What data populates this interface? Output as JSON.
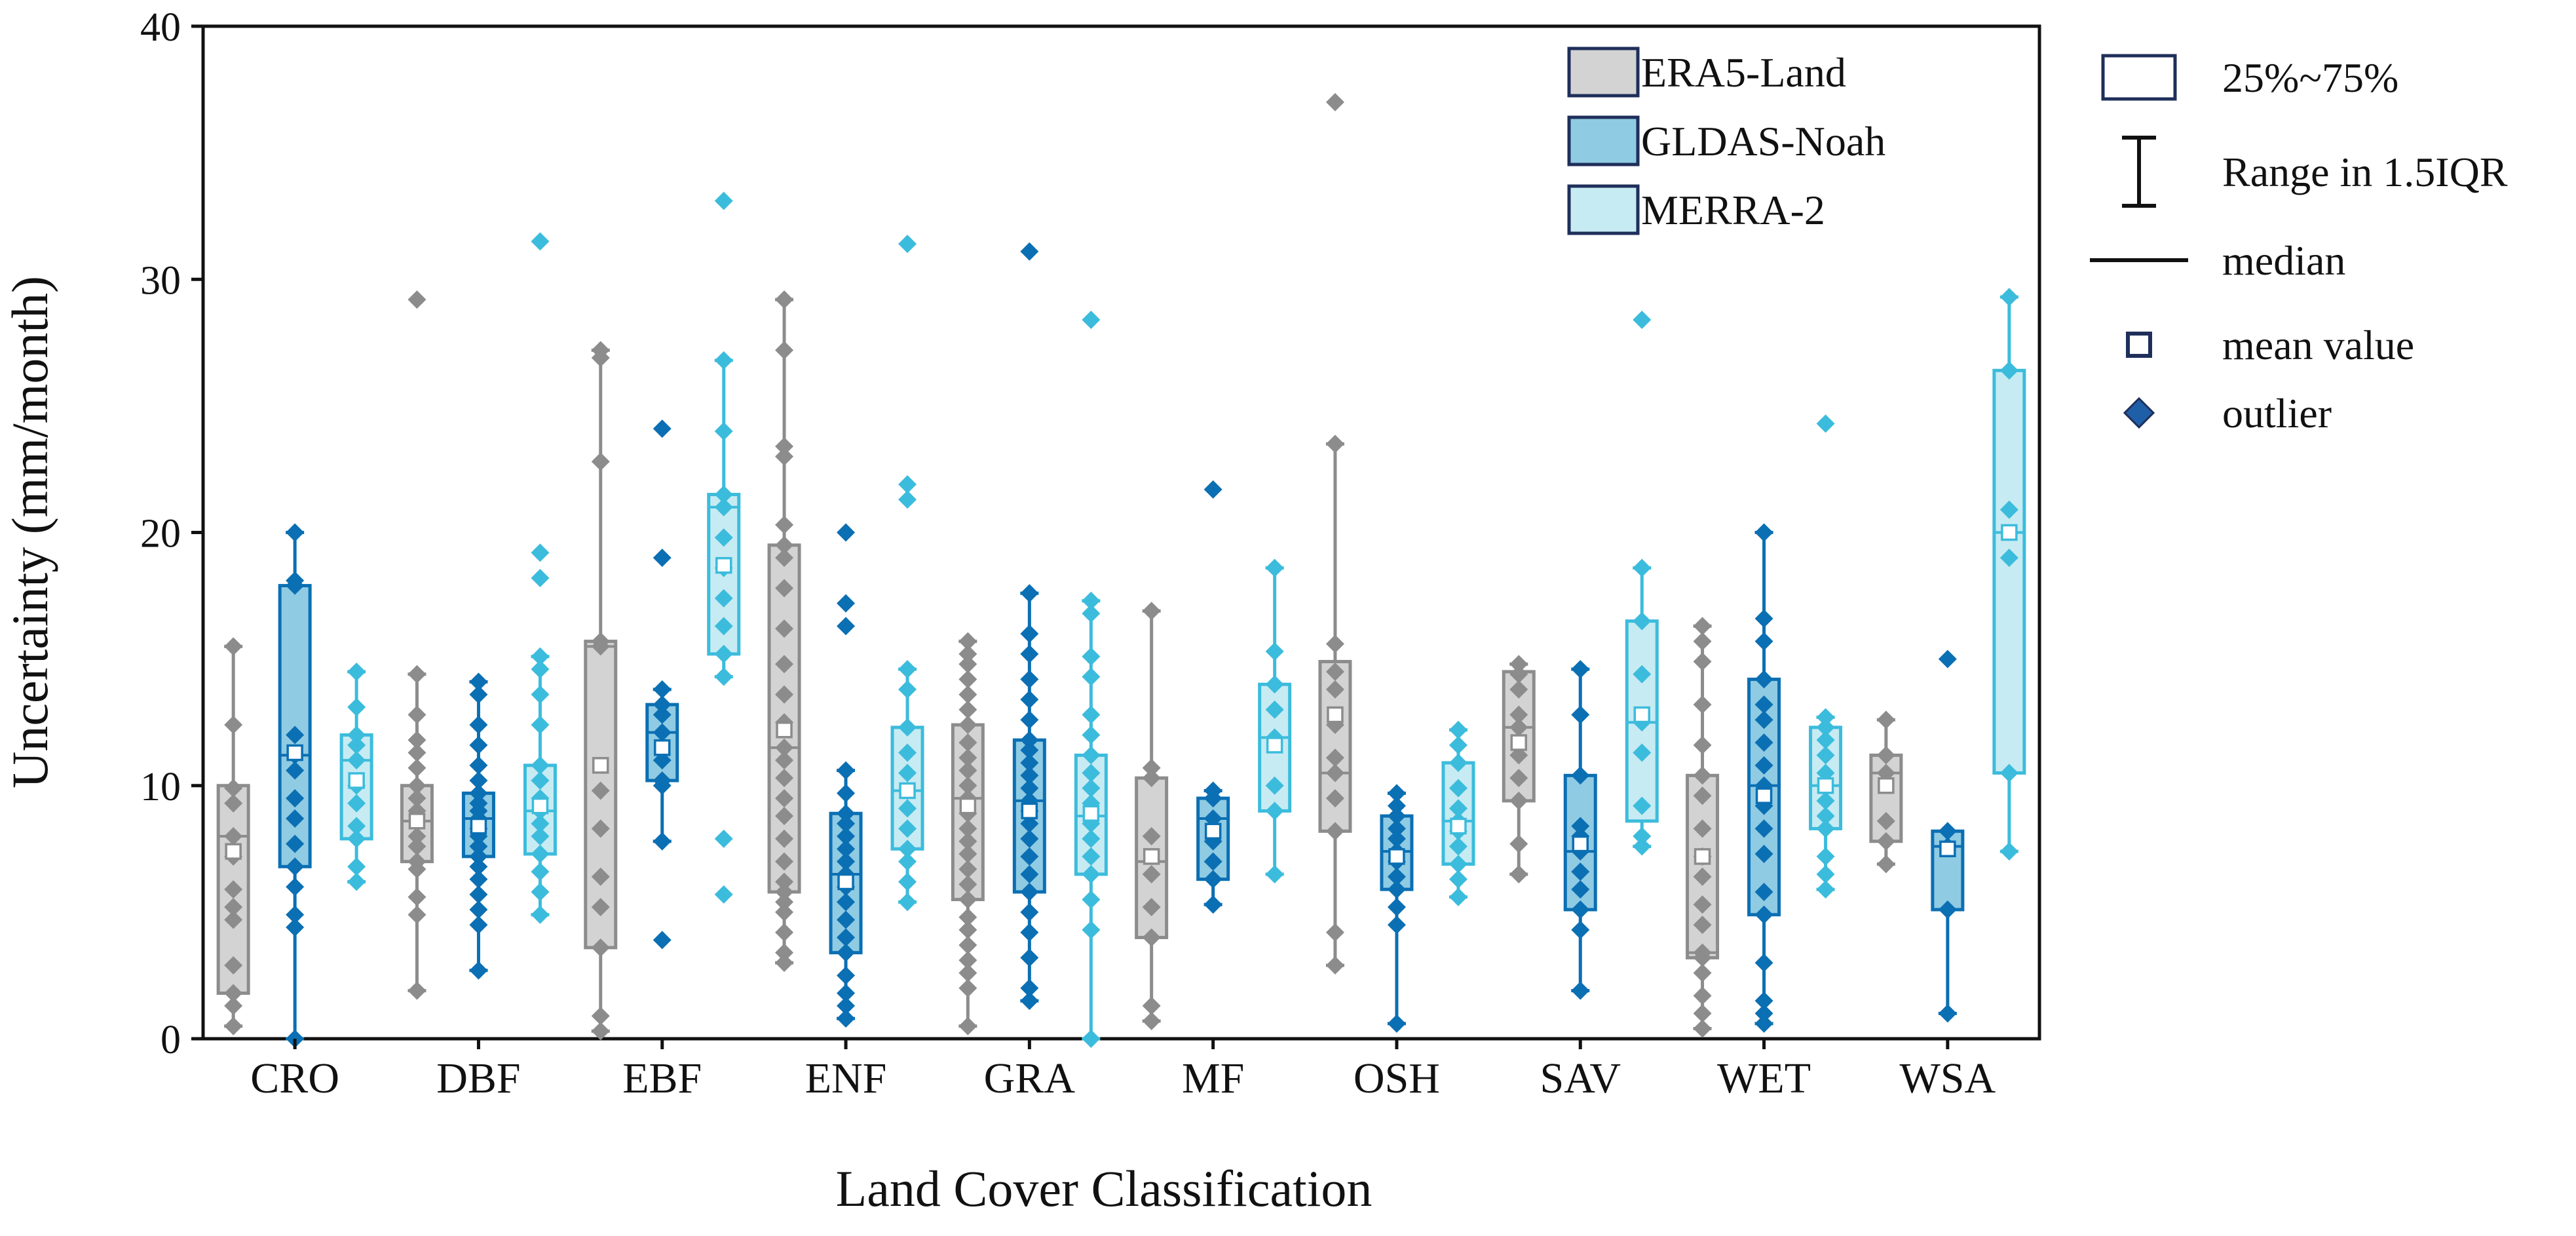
{
  "chart_data": {
    "type": "box",
    "xlabel": "Land Cover Classification",
    "ylabel": "Uncertainty (mm/month)",
    "ylim": [
      0,
      40
    ],
    "yticks": [
      0,
      10,
      20,
      30,
      40
    ],
    "categories": [
      "CRO",
      "DBF",
      "EBF",
      "ENF",
      "GRA",
      "MF",
      "OSH",
      "SAV",
      "WET",
      "WSA"
    ],
    "legend": {
      "position": "top-right",
      "series_entries": [
        {
          "label": "ERA5-Land",
          "fill": "#d3d3d3",
          "stroke": "#1f2f5a"
        },
        {
          "label": "GLDAS-Noah",
          "fill": "#8fcbe3",
          "stroke": "#1f2f5a"
        },
        {
          "label": "MERRA-2",
          "fill": "#c7ebf3",
          "stroke": "#1f2f5a"
        }
      ],
      "key_entries": [
        {
          "label": "25%~75%",
          "symbol": "box"
        },
        {
          "label": "Range in 1.5IQR",
          "symbol": "whisker"
        },
        {
          "label": "median",
          "symbol": "line"
        },
        {
          "label": "mean value",
          "symbol": "square"
        },
        {
          "label": "outlier",
          "symbol": "diamond"
        }
      ]
    },
    "grid": false,
    "series": [
      {
        "name": "ERA5-Land",
        "box_fill": "#d3d3d3",
        "stroke": "#8c8c8c",
        "point_color": "#8c8c8c",
        "boxes": [
          {
            "category": "CRO",
            "q1": 1.8,
            "median": 8.0,
            "q3": 10.0,
            "whisker_low": 0.5,
            "whisker_high": 15.5,
            "mean": 7.4,
            "points": [
              0.5,
              1.3,
              1.8,
              2.9,
              4.7,
              5.2,
              5.9,
              7.2,
              8.0,
              9.3,
              9.9,
              12.4,
              15.5
            ]
          },
          {
            "category": "DBF",
            "q1": 7.0,
            "median": 8.6,
            "q3": 10.0,
            "whisker_low": 1.9,
            "whisker_high": 14.4,
            "mean": 8.6,
            "points": [
              1.9,
              4.9,
              5.6,
              6.7,
              7.0,
              7.6,
              8.0,
              8.6,
              9.0,
              9.5,
              10.0,
              10.7,
              11.3,
              11.8,
              12.8,
              14.4,
              29.2
            ]
          },
          {
            "category": "EBF",
            "q1": 3.6,
            "median": 15.5,
            "q3": 15.7,
            "whisker_low": 0.3,
            "whisker_high": 27.2,
            "mean": 10.8,
            "points": [
              0.3,
              0.9,
              3.6,
              5.2,
              6.4,
              8.3,
              9.8,
              15.5,
              15.7,
              22.8,
              26.9,
              27.2
            ]
          },
          {
            "category": "ENF",
            "q1": 5.8,
            "median": 11.5,
            "q3": 19.5,
            "whisker_low": 3.0,
            "whisker_high": 29.2,
            "mean": 12.2,
            "points": [
              3.0,
              3.4,
              4.2,
              5.0,
              5.4,
              5.8,
              6.2,
              7.0,
              7.9,
              8.8,
              9.5,
              10.3,
              11.0,
              11.5,
              12.5,
              13.6,
              14.8,
              16.2,
              17.8,
              19.0,
              19.5,
              20.3,
              23.0,
              23.4,
              27.2,
              29.2
            ]
          },
          {
            "category": "GRA",
            "q1": 5.5,
            "median": 9.5,
            "q3": 12.4,
            "whisker_low": 0.5,
            "whisker_high": 15.7,
            "mean": 9.2,
            "points": [
              0.5,
              2.0,
              2.6,
              3.1,
              3.7,
              4.3,
              4.8,
              5.5,
              6.1,
              6.7,
              7.3,
              7.8,
              8.3,
              8.9,
              9.5,
              10.0,
              10.6,
              11.1,
              11.7,
              12.4,
              13.0,
              13.6,
              14.2,
              14.8,
              15.2,
              15.7
            ]
          },
          {
            "category": "MF",
            "q1": 4.0,
            "median": 7.0,
            "q3": 10.3,
            "whisker_low": 0.7,
            "whisker_high": 16.9,
            "mean": 7.2,
            "points": [
              0.7,
              1.3,
              4.0,
              5.2,
              6.5,
              8.0,
              10.3,
              10.7,
              16.9
            ]
          },
          {
            "category": "OSH",
            "q1": 8.2,
            "median": 10.5,
            "q3": 14.9,
            "whisker_low": 2.9,
            "whisker_high": 23.5,
            "mean": 12.8,
            "points": [
              2.9,
              4.2,
              8.2,
              9.5,
              10.5,
              11.1,
              12.4,
              13.8,
              14.5,
              15.6,
              23.5,
              37.0
            ]
          },
          {
            "category": "SAV",
            "q1": 9.4,
            "median": 12.3,
            "q3": 14.5,
            "whisker_low": 6.5,
            "whisker_high": 14.8,
            "mean": 11.7,
            "points": [
              6.5,
              7.7,
              9.4,
              10.3,
              11.2,
              12.3,
              12.8,
              13.8,
              14.4,
              14.8
            ]
          },
          {
            "category": "WET",
            "q1": 3.2,
            "median": 3.4,
            "q3": 10.4,
            "whisker_low": 0.4,
            "whisker_high": 16.3,
            "mean": 7.2,
            "points": [
              0.4,
              1.0,
              1.7,
              2.6,
              3.2,
              3.4,
              4.5,
              5.3,
              6.4,
              7.2,
              8.3,
              9.6,
              10.4,
              11.6,
              13.2,
              14.9,
              15.7,
              16.3
            ]
          },
          {
            "category": "WSA",
            "q1": 7.8,
            "median": 10.5,
            "q3": 11.2,
            "whisker_low": 6.9,
            "whisker_high": 12.6,
            "mean": 10.0,
            "points": [
              6.9,
              7.8,
              8.6,
              10.5,
              11.2,
              12.6
            ]
          }
        ]
      },
      {
        "name": "GLDAS-Noah",
        "box_fill": "#8fcbe3",
        "stroke": "#0b6fb3",
        "point_color": "#0b6fb3",
        "boxes": [
          {
            "category": "CRO",
            "q1": 6.8,
            "median": 11.2,
            "q3": 17.9,
            "whisker_low": 0.0,
            "whisker_high": 20.0,
            "mean": 11.3,
            "points": [
              0.0,
              4.4,
              4.9,
              6.0,
              6.8,
              7.7,
              8.7,
              9.5,
              10.6,
              11.2,
              12.0,
              17.9,
              18.1,
              20.0
            ]
          },
          {
            "category": "DBF",
            "q1": 7.2,
            "median": 8.7,
            "q3": 9.7,
            "whisker_low": 2.7,
            "whisker_high": 14.1,
            "mean": 8.4,
            "points": [
              2.7,
              4.5,
              5.1,
              5.7,
              6.3,
              6.8,
              7.2,
              7.6,
              8.0,
              8.3,
              8.7,
              9.0,
              9.3,
              9.7,
              10.2,
              10.8,
              11.6,
              12.4,
              13.6,
              14.1
            ]
          },
          {
            "category": "EBF",
            "q1": 10.2,
            "median": 12.1,
            "q3": 13.2,
            "whisker_low": 7.8,
            "whisker_high": 13.8,
            "mean": 11.5,
            "points": [
              3.9,
              7.8,
              10.0,
              10.2,
              11.0,
              12.1,
              12.8,
              13.2,
              13.8,
              19.0,
              24.1
            ]
          },
          {
            "category": "ENF",
            "q1": 3.4,
            "median": 6.5,
            "q3": 8.9,
            "whisker_low": 0.8,
            "whisker_high": 10.6,
            "mean": 6.2,
            "points": [
              0.8,
              1.3,
              1.8,
              2.5,
              3.4,
              4.0,
              4.7,
              5.4,
              6.0,
              6.5,
              7.0,
              7.5,
              8.0,
              8.5,
              8.9,
              9.7,
              10.6,
              16.3,
              17.2,
              20.0
            ]
          },
          {
            "category": "GRA",
            "q1": 5.8,
            "median": 9.4,
            "q3": 11.8,
            "whisker_low": 1.5,
            "whisker_high": 17.6,
            "mean": 9.0,
            "points": [
              1.5,
              2.0,
              3.2,
              4.2,
              5.0,
              5.8,
              6.5,
              7.2,
              7.9,
              8.5,
              9.0,
              9.4,
              9.9,
              10.4,
              10.9,
              11.4,
              11.8,
              12.6,
              13.4,
              14.2,
              15.2,
              16.0,
              17.6,
              31.1
            ]
          },
          {
            "category": "MF",
            "q1": 6.3,
            "median": 8.7,
            "q3": 9.5,
            "whisker_low": 5.3,
            "whisker_high": 9.8,
            "mean": 8.2,
            "points": [
              5.3,
              6.3,
              7.0,
              7.8,
              8.7,
              9.5,
              9.8,
              21.7
            ]
          },
          {
            "category": "OSH",
            "q1": 5.9,
            "median": 7.4,
            "q3": 8.8,
            "whisker_low": 0.6,
            "whisker_high": 9.7,
            "mean": 7.2,
            "points": [
              0.6,
              4.5,
              5.2,
              5.9,
              6.4,
              7.0,
              7.4,
              7.9,
              8.3,
              8.8,
              9.2,
              9.7
            ]
          },
          {
            "category": "SAV",
            "q1": 5.1,
            "median": 7.4,
            "q3": 10.4,
            "whisker_low": 1.9,
            "whisker_high": 14.6,
            "mean": 7.7,
            "points": [
              1.9,
              4.3,
              5.1,
              5.9,
              6.6,
              7.4,
              8.0,
              8.4,
              10.4,
              12.8,
              14.6
            ]
          },
          {
            "category": "WET",
            "q1": 4.9,
            "median": 10.0,
            "q3": 14.2,
            "whisker_low": 0.6,
            "whisker_high": 20.0,
            "mean": 9.6,
            "points": [
              0.6,
              1.0,
              1.5,
              3.0,
              4.9,
              5.8,
              7.3,
              8.3,
              9.2,
              10.0,
              10.8,
              11.7,
              12.6,
              13.2,
              14.2,
              15.7,
              16.6,
              20.0
            ]
          },
          {
            "category": "WSA",
            "q1": 5.1,
            "median": 7.6,
            "q3": 8.2,
            "whisker_low": 1.0,
            "whisker_high": 8.2,
            "mean": 7.5,
            "points": [
              1.0,
              5.1,
              7.6,
              8.2,
              15.0
            ]
          }
        ]
      },
      {
        "name": "MERRA-2",
        "box_fill": "#c7ebf3",
        "stroke": "#3cbcdc",
        "point_color": "#3cbcdc",
        "boxes": [
          {
            "category": "CRO",
            "q1": 7.9,
            "median": 11.0,
            "q3": 12.0,
            "whisker_low": 6.2,
            "whisker_high": 14.5,
            "mean": 10.2,
            "points": [
              6.2,
              6.8,
              7.9,
              8.4,
              9.3,
              10.0,
              11.0,
              11.6,
              12.0,
              13.1,
              14.5
            ]
          },
          {
            "category": "DBF",
            "q1": 7.3,
            "median": 9.0,
            "q3": 10.8,
            "whisker_low": 4.9,
            "whisker_high": 15.1,
            "mean": 9.2,
            "points": [
              4.9,
              5.8,
              6.6,
              7.3,
              8.0,
              8.5,
              9.0,
              9.5,
              10.2,
              10.8,
              12.4,
              13.6,
              14.6,
              15.1,
              18.2,
              19.2,
              31.5
            ]
          },
          {
            "category": "EBF",
            "q1": 15.2,
            "median": 21.0,
            "q3": 21.5,
            "whisker_low": 14.3,
            "whisker_high": 26.8,
            "mean": 18.7,
            "points": [
              5.7,
              7.9,
              14.3,
              15.2,
              16.3,
              17.4,
              18.6,
              19.8,
              21.0,
              21.5,
              24.0,
              26.8,
              33.1
            ]
          },
          {
            "category": "ENF",
            "q1": 7.5,
            "median": 9.8,
            "q3": 12.3,
            "whisker_low": 5.4,
            "whisker_high": 14.6,
            "mean": 9.8,
            "points": [
              5.4,
              6.2,
              7.0,
              7.5,
              8.3,
              9.1,
              9.8,
              10.5,
              11.3,
              12.3,
              13.8,
              14.6,
              21.3,
              21.9,
              31.4
            ]
          },
          {
            "category": "GRA",
            "q1": 6.5,
            "median": 8.8,
            "q3": 11.2,
            "whisker_low": 0.0,
            "whisker_high": 17.3,
            "mean": 8.9,
            "points": [
              0.0,
              4.3,
              5.5,
              6.5,
              7.2,
              7.9,
              8.5,
              8.8,
              9.3,
              9.9,
              10.5,
              11.2,
              12.0,
              12.8,
              14.3,
              15.1,
              16.8,
              17.3,
              28.4
            ]
          },
          {
            "category": "MF",
            "q1": 9.0,
            "median": 11.9,
            "q3": 14.0,
            "whisker_low": 6.5,
            "whisker_high": 18.6,
            "mean": 11.6,
            "points": [
              6.5,
              9.0,
              10.0,
              11.9,
              13.0,
              14.0,
              15.3,
              18.6
            ]
          },
          {
            "category": "OSH",
            "q1": 6.9,
            "median": 8.6,
            "q3": 10.9,
            "whisker_low": 5.6,
            "whisker_high": 12.2,
            "mean": 8.4,
            "points": [
              5.6,
              6.3,
              6.9,
              7.6,
              8.2,
              8.6,
              9.1,
              9.9,
              10.9,
              11.6,
              12.2
            ]
          },
          {
            "category": "SAV",
            "q1": 8.6,
            "median": 12.5,
            "q3": 16.5,
            "whisker_low": 7.6,
            "whisker_high": 18.6,
            "mean": 12.8,
            "points": [
              7.6,
              8.0,
              9.2,
              11.3,
              12.5,
              14.4,
              16.5,
              18.6,
              28.4
            ]
          },
          {
            "category": "WET",
            "q1": 8.3,
            "median": 10.0,
            "q3": 12.3,
            "whisker_low": 5.9,
            "whisker_high": 12.7,
            "mean": 10.0,
            "points": [
              5.9,
              6.5,
              7.2,
              8.3,
              8.8,
              9.4,
              10.0,
              10.5,
              11.2,
              11.8,
              12.3,
              12.7,
              24.3
            ]
          },
          {
            "category": "WSA",
            "q1": 10.5,
            "median": 20.0,
            "q3": 26.4,
            "whisker_low": 7.4,
            "whisker_high": 29.3,
            "mean": 20.0,
            "points": [
              7.4,
              10.5,
              19.0,
              20.9,
              26.4,
              29.3
            ]
          }
        ]
      }
    ]
  }
}
